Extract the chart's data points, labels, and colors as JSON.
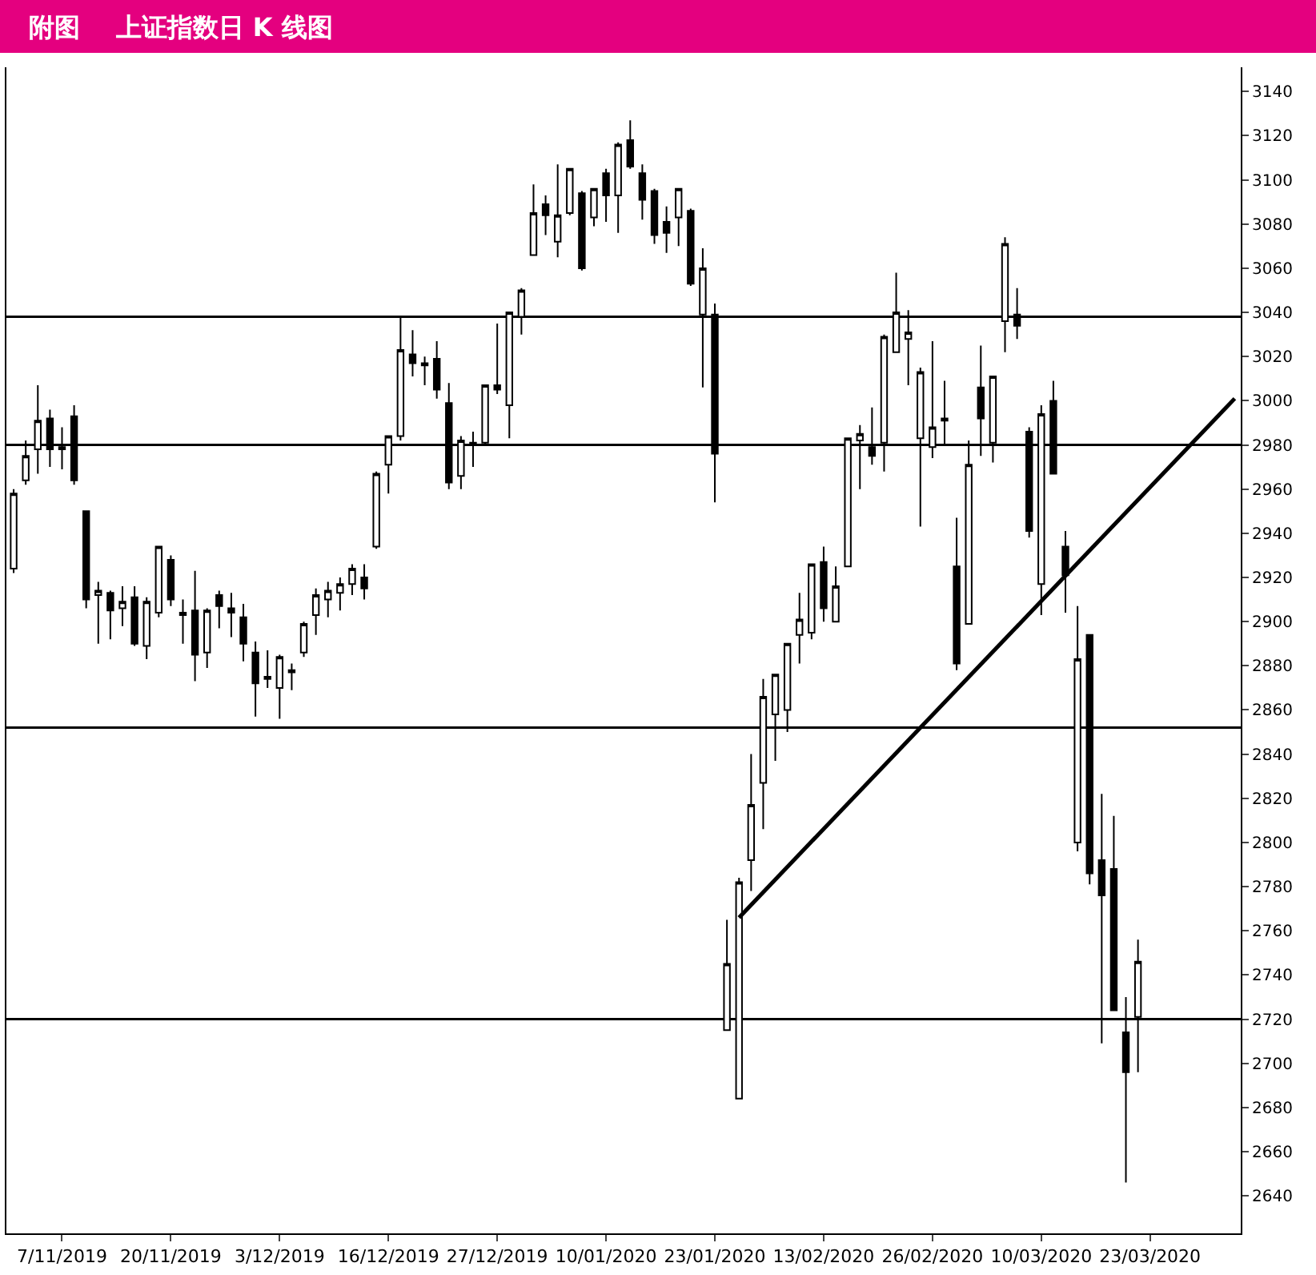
{
  "chart_data": {
    "type": "candlestick",
    "title": "附图    上证指数日 K 线图",
    "categories": [
      null,
      null,
      null,
      null,
      "7/11/2019",
      null,
      null,
      null,
      null,
      null,
      null,
      null,
      null,
      "20/11/2019",
      null,
      null,
      null,
      null,
      null,
      null,
      null,
      null,
      "3/12/2019",
      null,
      null,
      null,
      null,
      null,
      null,
      null,
      null,
      "16/12/2019",
      null,
      null,
      null,
      null,
      null,
      null,
      null,
      null,
      "27/12/2019",
      null,
      null,
      null,
      null,
      null,
      null,
      null,
      null,
      "10/01/2020",
      null,
      null,
      null,
      null,
      null,
      null,
      null,
      null,
      "23/01/2020",
      null,
      null,
      null,
      null,
      null,
      null,
      null,
      null,
      "13/02/2020",
      null,
      null,
      null,
      null,
      null,
      null,
      null,
      null,
      "26/02/2020",
      null,
      null,
      null,
      null,
      null,
      null,
      null,
      null,
      "10/03/2020",
      null,
      null,
      null,
      null,
      null,
      null,
      null,
      null,
      "23/03/2020",
      null,
      null,
      null,
      null,
      null,
      null,
      null
    ],
    "ohlc": [
      [
        2924,
        2960,
        2922,
        2958
      ],
      [
        2964,
        2982,
        2962,
        2975
      ],
      [
        2978,
        3007,
        2967,
        2991
      ],
      [
        2992,
        2996,
        2970,
        2978
      ],
      [
        2978,
        2988,
        2969,
        2979
      ],
      [
        2993,
        2998,
        2962,
        2964
      ],
      [
        2950,
        2950,
        2906,
        2910
      ],
      [
        2912,
        2918,
        2890,
        2914
      ],
      [
        2913,
        2914,
        2892,
        2905
      ],
      [
        2906,
        2916,
        2898,
        2909
      ],
      [
        2911,
        2916,
        2889,
        2890
      ],
      [
        2889,
        2911,
        2883,
        2909
      ],
      [
        2904,
        2934,
        2902,
        2934
      ],
      [
        2928,
        2930,
        2907,
        2910
      ],
      [
        2904,
        2910,
        2890,
        2903
      ],
      [
        2905,
        2923,
        2873,
        2885
      ],
      [
        2886,
        2906,
        2879,
        2905
      ],
      [
        2912,
        2914,
        2897,
        2907
      ],
      [
        2906,
        2913,
        2893,
        2904
      ],
      [
        2902,
        2908,
        2882,
        2890
      ],
      [
        2886,
        2891,
        2857,
        2872
      ],
      [
        2874,
        2887,
        2870,
        2875
      ],
      [
        2870,
        2885,
        2856,
        2884
      ],
      [
        2877,
        2881,
        2869,
        2878
      ],
      [
        2886,
        2900,
        2884,
        2899
      ],
      [
        2903,
        2915,
        2894,
        2912
      ],
      [
        2910,
        2918,
        2902,
        2914
      ],
      [
        2913,
        2920,
        2905,
        2917
      ],
      [
        2917,
        2926,
        2912,
        2924
      ],
      [
        2920,
        2926,
        2910,
        2915
      ],
      [
        2934,
        2968,
        2933,
        2967
      ],
      [
        2971,
        2984,
        2958,
        2984
      ],
      [
        2984,
        3038,
        2982,
        3023
      ],
      [
        3021,
        3032,
        3011,
        3017
      ],
      [
        3016,
        3020,
        3007,
        3017
      ],
      [
        3019,
        3027,
        3001,
        3005
      ],
      [
        2999,
        3008,
        2960,
        2963
      ],
      [
        2966,
        2984,
        2960,
        2982
      ],
      [
        2980,
        2986,
        2970,
        2981
      ],
      [
        2981,
        3007,
        2980,
        3007
      ],
      [
        3007,
        3035,
        3003,
        3005
      ],
      [
        2998,
        3040,
        2983,
        3040
      ],
      [
        3038,
        3051,
        3030,
        3050
      ],
      [
        3066,
        3098,
        3066,
        3085
      ],
      [
        3089,
        3093,
        3075,
        3084
      ],
      [
        3072,
        3107,
        3065,
        3084
      ],
      [
        3085,
        3105,
        3084,
        3105
      ],
      [
        3094,
        3095,
        3059,
        3060
      ],
      [
        3083,
        3096,
        3079,
        3096
      ],
      [
        3103,
        3105,
        3081,
        3093
      ],
      [
        3093,
        3117,
        3076,
        3116
      ],
      [
        3118,
        3127,
        3105,
        3106
      ],
      [
        3103,
        3107,
        3082,
        3091
      ],
      [
        3095,
        3096,
        3071,
        3075
      ],
      [
        3081,
        3088,
        3067,
        3076
      ],
      [
        3083,
        3096,
        3070,
        3096
      ],
      [
        3086,
        3087,
        3052,
        3053
      ],
      [
        3039,
        3069,
        3006,
        3060
      ],
      [
        3039,
        3044,
        2954,
        2976
      ],
      [
        2715,
        2765,
        2715,
        2745
      ],
      [
        2684,
        2784,
        2684,
        2782
      ],
      [
        2792,
        2840,
        2778,
        2817
      ],
      [
        2827,
        2874,
        2806,
        2866
      ],
      [
        2858,
        2876,
        2837,
        2876
      ],
      [
        2860,
        2890,
        2850,
        2890
      ],
      [
        2894,
        2913,
        2881,
        2901
      ],
      [
        2895,
        2926,
        2892,
        2926
      ],
      [
        2927,
        2934,
        2900,
        2906
      ],
      [
        2900,
        2925,
        2900,
        2916
      ],
      [
        2925,
        2983,
        2925,
        2983
      ],
      [
        2982,
        2989,
        2960,
        2985
      ],
      [
        2979,
        2997,
        2971,
        2975
      ],
      [
        2981,
        3030,
        2968,
        3029
      ],
      [
        3022,
        3058,
        3022,
        3040
      ],
      [
        3028,
        3041,
        3007,
        3031
      ],
      [
        2983,
        3015,
        2943,
        3013
      ],
      [
        2979,
        3027,
        2974,
        2988
      ],
      [
        2991,
        3009,
        2980,
        2992
      ],
      [
        2925,
        2947,
        2878,
        2881
      ],
      [
        2899,
        2982,
        2899,
        2971
      ],
      [
        3006,
        3025,
        2975,
        2992
      ],
      [
        2981,
        3011,
        2972,
        3011
      ],
      [
        3036,
        3074,
        3022,
        3071
      ],
      [
        3039,
        3051,
        3028,
        3034
      ],
      [
        2986,
        2988,
        2938,
        2941
      ],
      [
        2917,
        2998,
        2903,
        2994
      ],
      [
        3000,
        3009,
        2967,
        2967
      ],
      [
        2934,
        2941,
        2904,
        2921
      ],
      [
        2800,
        2907,
        2796,
        2883
      ],
      [
        2894,
        2894,
        2781,
        2786
      ],
      [
        2792,
        2822,
        2709,
        2776
      ],
      [
        2788,
        2812,
        2724,
        2724
      ],
      [
        2714,
        2730,
        2646,
        2696
      ],
      [
        2721,
        2756,
        2696,
        2746
      ],
      null,
      null,
      null,
      null,
      null,
      null,
      null,
      null
    ],
    "series": [
      {
        "type": "line",
        "color": "#000000",
        "values": [
          null,
          null,
          null,
          null,
          null,
          null,
          null,
          null,
          null,
          null,
          null,
          null,
          null,
          null,
          null,
          null,
          null,
          null,
          null,
          null,
          null,
          null,
          null,
          null,
          null,
          null,
          null,
          null,
          null,
          null,
          null,
          null,
          null,
          null,
          null,
          null,
          null,
          null,
          null,
          null,
          null,
          null,
          null,
          null,
          null,
          null,
          null,
          null,
          null,
          null,
          null,
          null,
          null,
          null,
          null,
          null,
          null,
          null,
          null,
          null,
          2766,
          null,
          null,
          null,
          null,
          null,
          null,
          null,
          null,
          null,
          null,
          null,
          null,
          null,
          null,
          null,
          null,
          null,
          null,
          null,
          null,
          null,
          null,
          null,
          null,
          null,
          null,
          null,
          null,
          null,
          null,
          null,
          null,
          null,
          null,
          null,
          null,
          null,
          null,
          null,
          null,
          3001
        ]
      }
    ],
    "ref_lines": [
      {
        "axis": "y",
        "value": 3038,
        "color": "#000000"
      },
      {
        "axis": "y",
        "value": 2980,
        "color": "#000000"
      },
      {
        "axis": "y",
        "value": 2852,
        "color": "#000000"
      },
      {
        "axis": "y",
        "value": 2720,
        "color": "#000000"
      }
    ],
    "ylim": [
      2623,
      3151
    ],
    "yticks": [
      2640,
      2660,
      2680,
      2700,
      2720,
      2740,
      2760,
      2780,
      2800,
      2820,
      2840,
      2860,
      2880,
      2900,
      2920,
      2940,
      2960,
      2980,
      3000,
      3020,
      3040,
      3060,
      3080,
      3100,
      3120,
      3140
    ],
    "grid": false
  }
}
